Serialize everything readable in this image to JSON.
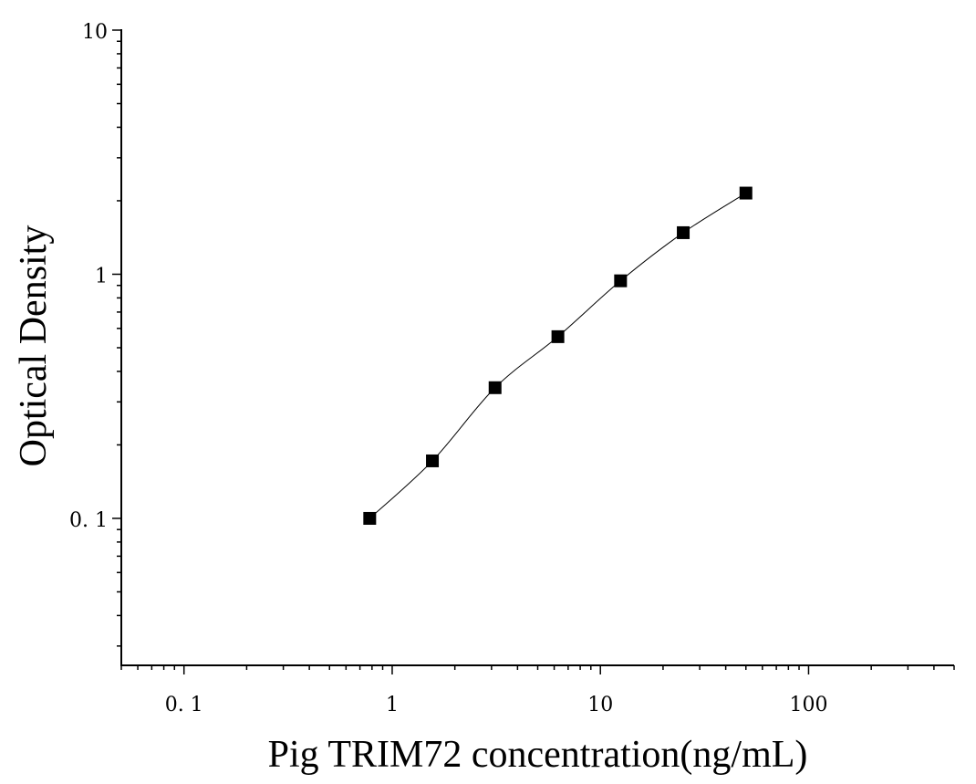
{
  "chart_data": {
    "type": "scatter",
    "title": "",
    "xlabel": "Pig TRIM72 concentration(ng/mL)",
    "ylabel": "Optical Density",
    "x_scale": "log",
    "y_scale": "log",
    "xlim": [
      0.05,
      500
    ],
    "ylim": [
      0.025,
      10
    ],
    "x_ticks": [
      {
        "value": 0.1,
        "label": "0. 1"
      },
      {
        "value": 1,
        "label": "1"
      },
      {
        "value": 10,
        "label": "10"
      },
      {
        "value": 100,
        "label": "100"
      }
    ],
    "y_ticks": [
      {
        "value": 0.1,
        "label": "0. 1"
      },
      {
        "value": 1,
        "label": "1"
      },
      {
        "value": 10,
        "label": "10"
      }
    ],
    "grid": false,
    "series": [
      {
        "marker": "square",
        "fit_line": true,
        "color": "#000000",
        "x": [
          0.78,
          1.56,
          3.12,
          6.25,
          12.5,
          25,
          50
        ],
        "y": [
          0.1,
          0.172,
          0.343,
          0.555,
          0.94,
          1.48,
          2.15
        ]
      }
    ]
  }
}
